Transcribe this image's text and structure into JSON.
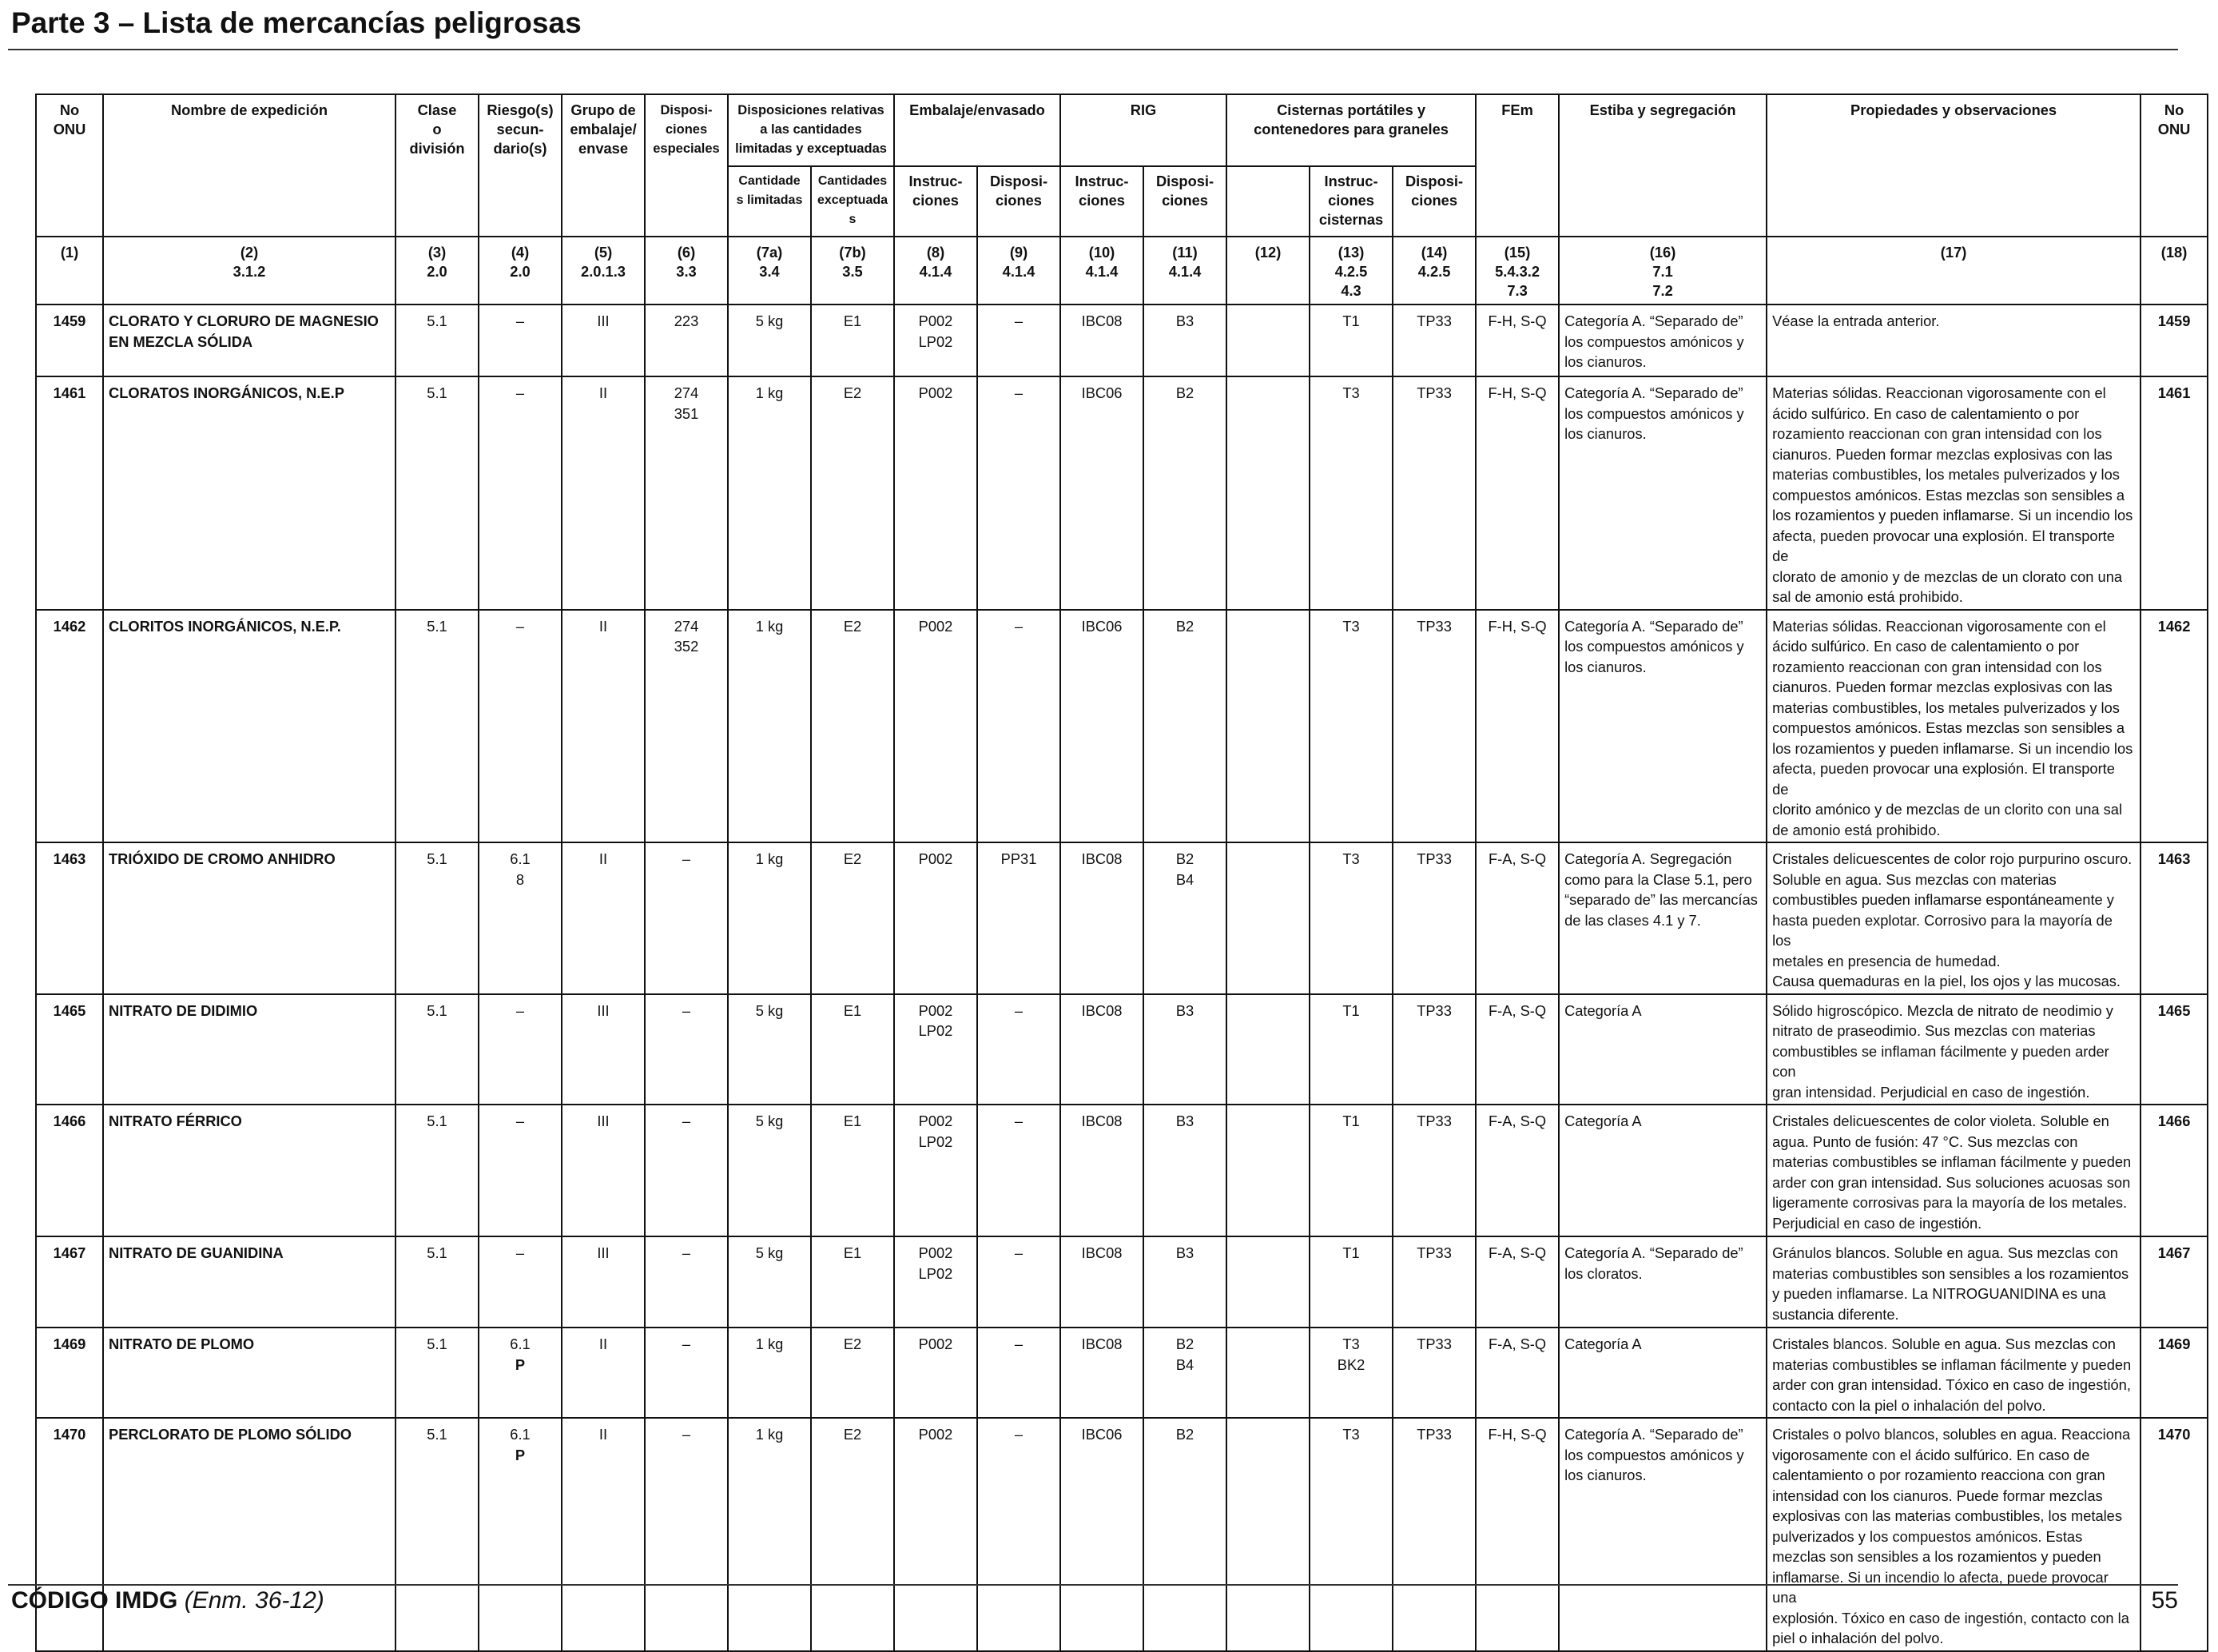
{
  "header": {
    "title": "Parte 3 – Lista de mercancías peligrosas"
  },
  "footer": {
    "code": "CÓDIGO IMDG",
    "amendment": "(Enm. 36-12)",
    "page": "55"
  },
  "columns": {
    "h_no_onu": "No ONU",
    "h_nombre": "Nombre de expedición",
    "h_clase": [
      "Clase",
      "o",
      "división"
    ],
    "h_riesgo": [
      "Riesgo(s)",
      "secun-",
      "dario(s)"
    ],
    "h_grupo": [
      "Grupo de",
      "embalaje/",
      "envase"
    ],
    "h_dispos_esp": [
      "Disposi-",
      "ciones",
      "especiales"
    ],
    "h_cant_lim": [
      "Disposiciones relativas",
      "a las cantidades",
      "limitadas y exceptuadas"
    ],
    "h_embalaje": "Embalaje/envasado",
    "h_rig": "RIG",
    "h_cisternas": [
      "Cisternas portátiles y",
      "contenedores para graneles"
    ],
    "h_fem": "FEm",
    "h_estiba": "Estiba y segregación",
    "h_propiedades": "Propiedades y observaciones",
    "h_no_onu_right": "No ONU",
    "sub_cant_limitadas": [
      "Cantidade",
      "s limitadas"
    ],
    "sub_cant_exceptuadas": [
      "Cantidades",
      "exceptuadas"
    ],
    "sub_instrucciones": [
      "Instruc-",
      "ciones"
    ],
    "sub_disposiciones": [
      "Disposi-",
      "ciones"
    ],
    "sub_instrucciones_cisternas": [
      "Instruc-",
      "ciones",
      "cisternas"
    ],
    "num": [
      [
        "(1)"
      ],
      [
        "(2)",
        "3.1.2"
      ],
      [
        "(3)",
        "2.0"
      ],
      [
        "(4)",
        "2.0"
      ],
      [
        "(5)",
        "2.0.1.3"
      ],
      [
        "(6)",
        "3.3"
      ],
      [
        "(7a)",
        "3.4"
      ],
      [
        "(7b)",
        "3.5"
      ],
      [
        "(8)",
        "4.1.4"
      ],
      [
        "(9)",
        "4.1.4"
      ],
      [
        "(10)",
        "4.1.4"
      ],
      [
        "(11)",
        "4.1.4"
      ],
      [
        "(12)"
      ],
      [
        "(13)",
        "4.2.5",
        "4.3"
      ],
      [
        "(14)",
        "4.2.5"
      ],
      [
        "(15)",
        "5.4.3.2",
        "7.3"
      ],
      [
        "(16)",
        "7.1",
        "7.2"
      ],
      [
        "(17)"
      ],
      [
        "(18)"
      ]
    ]
  },
  "rows": [
    {
      "un": "1459",
      "name": [
        "CLORATO Y CLORURO DE MAGNESIO",
        "EN MEZCLA SÓLIDA"
      ],
      "clase": "5.1",
      "riesgo": [
        "–"
      ],
      "riesgo_bold": "",
      "grupo": "III",
      "dispos": [
        "223"
      ],
      "cant_lim": "5 kg",
      "cant_exc": "E1",
      "pack_instr": [
        "P002",
        "LP02"
      ],
      "pack_disp": "–",
      "rig_instr": "IBC08",
      "rig_disp": [
        "B3"
      ],
      "c12": "",
      "tank_instr": [
        "T1"
      ],
      "tank_disp": "TP33",
      "fem": "F-H, S-Q",
      "estiba": [
        "Categoría A. “Separado de”",
        "los compuestos amónicos y",
        "los cianuros."
      ],
      "obs": [
        "Véase la entrada anterior."
      ]
    },
    {
      "un": "1461",
      "name": [
        "CLORATOS INORGÁNICOS, N.E.P"
      ],
      "clase": "5.1",
      "riesgo": [
        "–"
      ],
      "riesgo_bold": "",
      "grupo": "II",
      "dispos": [
        "274",
        "351"
      ],
      "cant_lim": "1 kg",
      "cant_exc": "E2",
      "pack_instr": [
        "P002"
      ],
      "pack_disp": "–",
      "rig_instr": "IBC06",
      "rig_disp": [
        "B2"
      ],
      "c12": "",
      "tank_instr": [
        "T3"
      ],
      "tank_disp": "TP33",
      "fem": "F-H, S-Q",
      "estiba": [
        "Categoría A. “Separado de”",
        "los compuestos amónicos y",
        "los cianuros."
      ],
      "obs": [
        "Materias sólidas. Reaccionan vigorosamente con el",
        "ácido sulfúrico. En caso de calentamiento o por",
        "rozamiento reaccionan con gran intensidad con los",
        "cianuros. Pueden formar mezclas explosivas con las",
        "materias combustibles, los metales pulverizados y los",
        "compuestos amónicos. Estas mezclas son sensibles a",
        "los rozamientos y pueden inflamarse. Si un incendio los",
        "afecta, pueden provocar una explosión. El transporte de",
        "clorato de amonio y de mezclas de un clorato con una",
        "sal de amonio está prohibido."
      ]
    },
    {
      "un": "1462",
      "name": [
        "CLORITOS INORGÁNICOS, N.E.P."
      ],
      "clase": "5.1",
      "riesgo": [
        "–"
      ],
      "riesgo_bold": "",
      "grupo": "II",
      "dispos": [
        "274",
        "352"
      ],
      "cant_lim": "1 kg",
      "cant_exc": "E2",
      "pack_instr": [
        "P002"
      ],
      "pack_disp": "–",
      "rig_instr": "IBC06",
      "rig_disp": [
        "B2"
      ],
      "c12": "",
      "tank_instr": [
        "T3"
      ],
      "tank_disp": "TP33",
      "fem": "F-H, S-Q",
      "estiba": [
        "Categoría A. “Separado de”",
        "los compuestos amónicos y",
        "los cianuros."
      ],
      "obs": [
        "Materias sólidas. Reaccionan vigorosamente con el",
        "ácido sulfúrico. En caso de calentamiento o por",
        "rozamiento reaccionan con gran intensidad con los",
        "cianuros. Pueden formar mezclas explosivas con las",
        "materias combustibles, los metales pulverizados y los",
        "compuestos amónicos. Estas mezclas son sensibles a",
        "los rozamientos y pueden inflamarse. Si un incendio los",
        "afecta, pueden provocar una explosión. El transporte de",
        "clorito amónico y de mezclas de un clorito con una sal",
        "de amonio está prohibido."
      ]
    },
    {
      "un": "1463",
      "name": [
        "TRIÓXIDO DE CROMO ANHIDRO"
      ],
      "clase": "5.1",
      "riesgo": [
        "6.1",
        "8"
      ],
      "riesgo_bold": "",
      "grupo": "II",
      "dispos": [
        "–"
      ],
      "cant_lim": "1 kg",
      "cant_exc": "E2",
      "pack_instr": [
        "P002"
      ],
      "pack_disp": "PP31",
      "rig_instr": "IBC08",
      "rig_disp": [
        "B2",
        "B4"
      ],
      "c12": "",
      "tank_instr": [
        "T3"
      ],
      "tank_disp": "TP33",
      "fem": "F-A, S-Q",
      "estiba": [
        "Categoría A. Segregación",
        "como para la Clase 5.1, pero",
        "“separado de” las mercancías",
        "de las clases 4.1 y 7."
      ],
      "obs": [
        "Cristales delicuescentes de color rojo purpurino oscuro.",
        "Soluble en agua. Sus mezclas con materias",
        "combustibles pueden inflamarse espontáneamente y",
        "hasta pueden explotar. Corrosivo para la mayoría de los",
        "metales en presencia de humedad.",
        "Causa quemaduras en la piel, los ojos y las mucosas."
      ]
    },
    {
      "un": "1465",
      "name": [
        "NITRATO DE DIDIMIO"
      ],
      "clase": "5.1",
      "riesgo": [
        "–"
      ],
      "riesgo_bold": "",
      "grupo": "III",
      "dispos": [
        "–"
      ],
      "cant_lim": "5 kg",
      "cant_exc": "E1",
      "pack_instr": [
        "P002",
        "LP02"
      ],
      "pack_disp": "–",
      "rig_instr": "IBC08",
      "rig_disp": [
        "B3"
      ],
      "c12": "",
      "tank_instr": [
        "T1"
      ],
      "tank_disp": "TP33",
      "fem": "F-A, S-Q",
      "estiba": [
        "Categoría A"
      ],
      "obs": [
        "Sólido higroscópico. Mezcla de nitrato de neodimio y",
        "nitrato de praseodimio. Sus mezclas con materias",
        "combustibles se inflaman fácilmente y pueden arder con",
        "gran intensidad. Perjudicial en caso de ingestión."
      ]
    },
    {
      "un": "1466",
      "name": [
        "NITRATO FÉRRICO"
      ],
      "clase": "5.1",
      "riesgo": [
        "–"
      ],
      "riesgo_bold": "",
      "grupo": "III",
      "dispos": [
        "–"
      ],
      "cant_lim": "5 kg",
      "cant_exc": "E1",
      "pack_instr": [
        "P002",
        "LP02"
      ],
      "pack_disp": "–",
      "rig_instr": "IBC08",
      "rig_disp": [
        "B3"
      ],
      "c12": "",
      "tank_instr": [
        "T1"
      ],
      "tank_disp": "TP33",
      "fem": "F-A, S-Q",
      "estiba": [
        "Categoría A"
      ],
      "obs": [
        "Cristales delicuescentes de color violeta. Soluble en",
        "agua. Punto de fusión: 47 °C. Sus mezclas con",
        "materias combustibles se inflaman fácilmente y pueden",
        "arder con gran intensidad. Sus soluciones acuosas son",
        "ligeramente corrosivas para la mayoría de los metales.",
        "Perjudicial en caso de ingestión."
      ]
    },
    {
      "un": "1467",
      "name": [
        "NITRATO DE GUANIDINA"
      ],
      "clase": "5.1",
      "riesgo": [
        "–"
      ],
      "riesgo_bold": "",
      "grupo": "III",
      "dispos": [
        "–"
      ],
      "cant_lim": "5 kg",
      "cant_exc": "E1",
      "pack_instr": [
        "P002",
        "LP02"
      ],
      "pack_disp": "–",
      "rig_instr": "IBC08",
      "rig_disp": [
        "B3"
      ],
      "c12": "",
      "tank_instr": [
        "T1"
      ],
      "tank_disp": "TP33",
      "fem": "F-A, S-Q",
      "estiba": [
        "Categoría A. “Separado de”",
        "los cloratos."
      ],
      "obs": [
        "Gránulos blancos. Soluble en agua. Sus mezclas con",
        "materias combustibles son sensibles a los rozamientos",
        "y pueden inflamarse. La NITROGUANIDINA es una",
        "sustancia diferente."
      ]
    },
    {
      "un": "1469",
      "name": [
        "NITRATO DE PLOMO"
      ],
      "clase": "5.1",
      "riesgo": [
        "6.1"
      ],
      "riesgo_bold": "P",
      "grupo": "II",
      "dispos": [
        "–"
      ],
      "cant_lim": "1 kg",
      "cant_exc": "E2",
      "pack_instr": [
        "P002"
      ],
      "pack_disp": "–",
      "rig_instr": "IBC08",
      "rig_disp": [
        "B2",
        "B4"
      ],
      "c12": "",
      "tank_instr": [
        "T3",
        "BK2"
      ],
      "tank_disp": "TP33",
      "fem": "F-A, S-Q",
      "estiba": [
        "Categoría A"
      ],
      "obs": [
        "Cristales blancos. Soluble en agua. Sus mezclas con",
        "materias combustibles se inflaman fácilmente y pueden",
        "arder con gran intensidad. Tóxico en caso de ingestión,",
        "contacto con la piel o inhalación del polvo."
      ]
    },
    {
      "un": "1470",
      "name": [
        "PERCLORATO DE PLOMO SÓLIDO"
      ],
      "clase": "5.1",
      "riesgo": [
        "6.1"
      ],
      "riesgo_bold": "P",
      "grupo": "II",
      "dispos": [
        "–"
      ],
      "cant_lim": "1 kg",
      "cant_exc": "E2",
      "pack_instr": [
        "P002"
      ],
      "pack_disp": "–",
      "rig_instr": "IBC06",
      "rig_disp": [
        "B2"
      ],
      "c12": "",
      "tank_instr": [
        "T3"
      ],
      "tank_disp": "TP33",
      "fem": "F-H, S-Q",
      "estiba": [
        "Categoría A. “Separado de”",
        "los compuestos amónicos y",
        "los cianuros."
      ],
      "obs": [
        "Cristales o polvo blancos, solubles en agua. Reacciona",
        "vigorosamente con el ácido sulfúrico. En caso de",
        "calentamiento o por rozamiento reacciona con gran",
        "intensidad con los cianuros. Puede formar mezclas",
        "explosivas con las materias combustibles, los metales",
        "pulverizados y los compuestos amónicos. Estas",
        "mezclas son sensibles a los rozamientos y pueden",
        "inflamarse. Si un incendio lo afecta, puede provocar una",
        "explosión. Tóxico en caso de ingestión, contacto con la",
        "piel o inhalación del polvo."
      ]
    }
  ]
}
